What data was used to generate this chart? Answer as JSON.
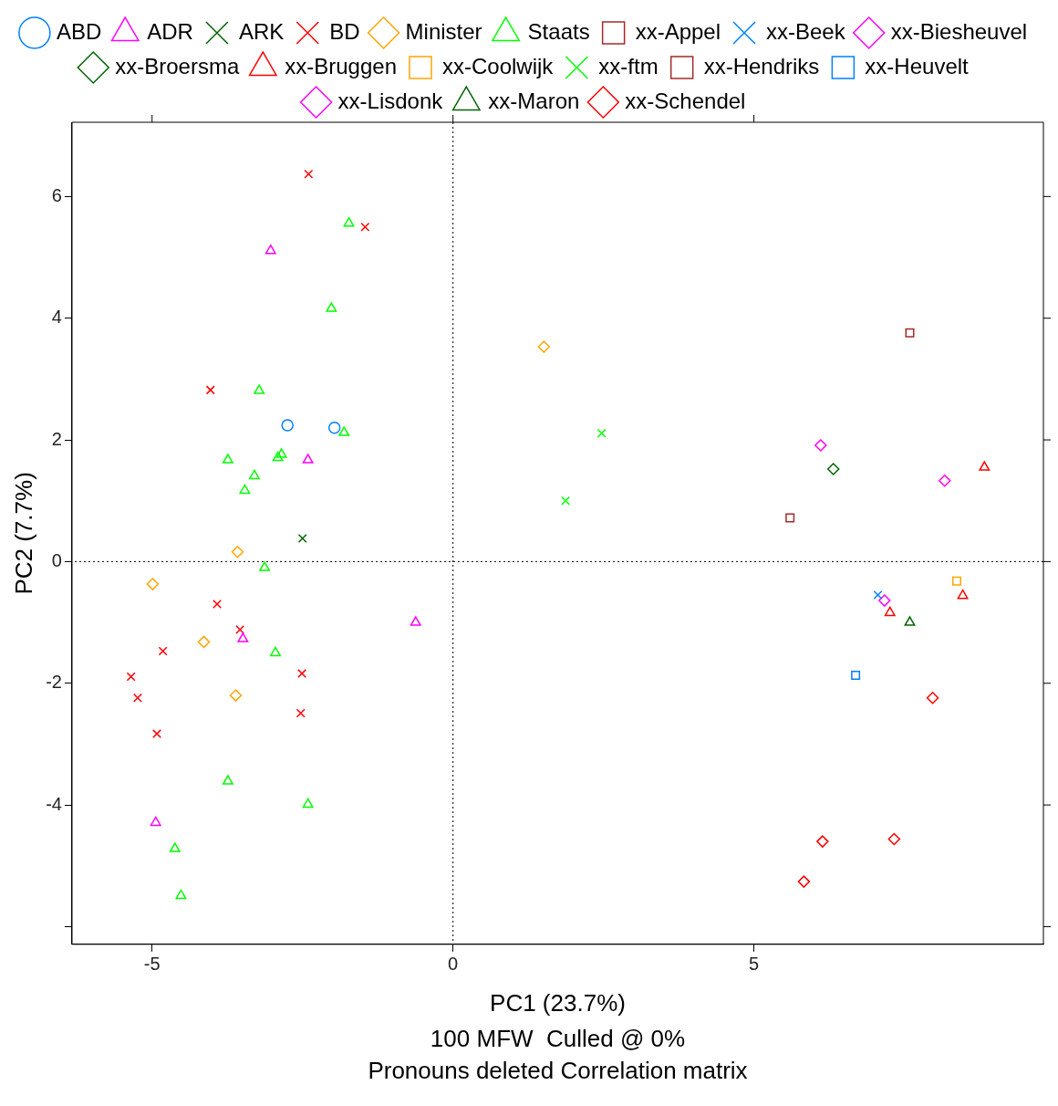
{
  "chart_data": {
    "type": "scatter",
    "xlabel": "PC1 (23.7%)",
    "ylabel": "PC2 (7.7%)",
    "annotations": [
      "100 MFW  Culled @ 0%",
      "Pronouns deleted Correlation matrix"
    ],
    "xlim": [
      -6.33,
      9.81
    ],
    "ylim": [
      -6.29,
      7.22
    ],
    "xticks": [
      -5,
      0,
      5
    ],
    "yticks": [
      {
        "value": -6,
        "label": null
      },
      -4,
      -2,
      0,
      2,
      4,
      6
    ],
    "grid": false,
    "legend": "top",
    "ref_lines": [
      {
        "axis": "x",
        "value": 0,
        "color": "#000000",
        "line_style": "dotted"
      },
      {
        "axis": "y",
        "value": 0,
        "color": "#000000",
        "line_style": "dotted"
      }
    ],
    "series": [
      {
        "name": "ABD",
        "color": "#0080ff",
        "marker": "circle",
        "x": [
          -2.75,
          -1.97
        ],
        "values": [
          2.24,
          2.2
        ]
      },
      {
        "name": "ADR",
        "color": "#ff00ff",
        "marker": "triangle",
        "x": [
          -3.03,
          -2.41,
          -3.49,
          -0.62,
          -4.94
        ],
        "values": [
          5.11,
          1.67,
          -1.27,
          -1.0,
          -4.29
        ]
      },
      {
        "name": "ARK",
        "color": "#006400",
        "marker": "cross",
        "x": [
          -2.5
        ],
        "values": [
          0.38
        ]
      },
      {
        "name": "BD",
        "color": "#ff0000",
        "marker": "cross",
        "x": [
          -2.4,
          -1.46,
          -4.03,
          -3.92,
          -3.54,
          -4.82,
          -5.35,
          -5.24,
          -2.51,
          -2.53,
          -4.92
        ],
        "values": [
          6.37,
          5.5,
          2.82,
          -0.7,
          -1.12,
          -1.47,
          -1.89,
          -2.24,
          -1.84,
          -2.49,
          -2.83
        ]
      },
      {
        "name": "Minister",
        "color": "#ffa500",
        "marker": "diamond",
        "x": [
          -3.58,
          -4.99,
          -4.14,
          -3.61,
          1.51
        ],
        "values": [
          0.16,
          -0.37,
          -1.32,
          -2.2,
          3.53
        ]
      },
      {
        "name": "Staats",
        "color": "#00ff00",
        "marker": "triangle",
        "x": [
          -1.73,
          -2.02,
          -3.22,
          -1.81,
          -3.74,
          -2.91,
          -2.85,
          -3.3,
          -3.46,
          -3.13,
          -2.95,
          -3.74,
          -2.41,
          -4.62,
          -4.52
        ],
        "values": [
          5.56,
          4.16,
          2.81,
          2.12,
          1.67,
          1.71,
          1.76,
          1.41,
          1.17,
          -0.1,
          -1.5,
          -3.61,
          -3.99,
          -4.72,
          -5.49
        ]
      },
      {
        "name": "xx-Appel",
        "color": "#a52a2a",
        "marker": "square",
        "x": [
          7.59
        ],
        "values": [
          3.76
        ]
      },
      {
        "name": "xx-Beek",
        "color": "#0080ff",
        "marker": "cross",
        "x": [
          7.06
        ],
        "values": [
          -0.55
        ]
      },
      {
        "name": "xx-Biesheuvel",
        "color": "#ff00ff",
        "marker": "diamond",
        "x": [
          8.17,
          7.17
        ],
        "values": [
          1.33,
          -0.64
        ]
      },
      {
        "name": "xx-Broersma",
        "color": "#006400",
        "marker": "diamond",
        "x": [
          6.32
        ],
        "values": [
          1.52
        ]
      },
      {
        "name": "xx-Bruggen",
        "color": "#ff0000",
        "marker": "triangle",
        "x": [
          8.83,
          8.47,
          7.26
        ],
        "values": [
          1.55,
          -0.56,
          -0.84
        ]
      },
      {
        "name": "xx-Coolwijk",
        "color": "#ffa500",
        "marker": "square",
        "x": [
          8.37
        ],
        "values": [
          -0.32
        ]
      },
      {
        "name": "xx-ftm",
        "color": "#00ff00",
        "marker": "cross",
        "x": [
          2.47,
          1.87
        ],
        "values": [
          2.11,
          1.0
        ]
      },
      {
        "name": "xx-Hendriks",
        "color": "#a52a2a",
        "marker": "square",
        "x": [
          5.6
        ],
        "values": [
          0.72
        ]
      },
      {
        "name": "xx-Heuvelt",
        "color": "#0080ff",
        "marker": "square",
        "x": [
          6.69
        ],
        "values": [
          -1.87
        ]
      },
      {
        "name": "xx-Lisdonk",
        "color": "#ff00ff",
        "marker": "diamond",
        "x": [
          6.11
        ],
        "values": [
          1.91
        ]
      },
      {
        "name": "xx-Maron",
        "color": "#006400",
        "marker": "triangle",
        "x": [
          7.59
        ],
        "values": [
          -1.0
        ]
      },
      {
        "name": "xx-Schendel",
        "color": "#ff0000",
        "marker": "diamond",
        "x": [
          7.97,
          6.14,
          7.33,
          5.83
        ],
        "values": [
          -2.24,
          -4.6,
          -4.56,
          -5.26
        ]
      }
    ]
  }
}
